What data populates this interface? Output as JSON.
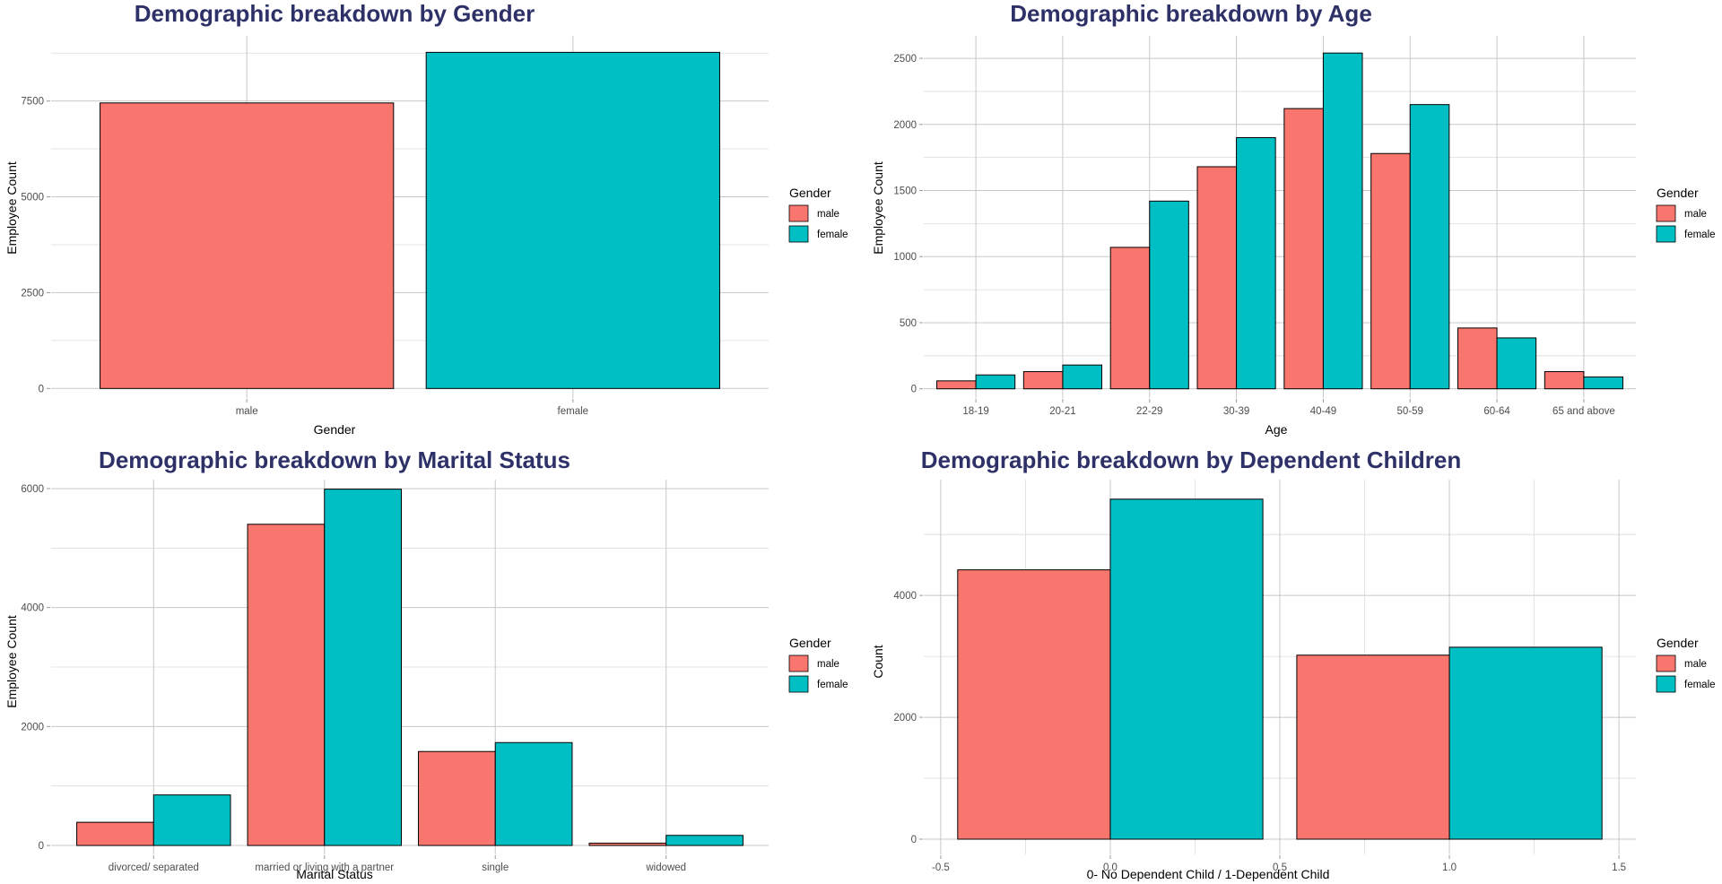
{
  "colors": {
    "male": "#F8766D",
    "female": "#00BFC4",
    "title": "#2E3168",
    "bar_outline": "#000000"
  },
  "legend": {
    "title": "Gender",
    "items": [
      "male",
      "female"
    ]
  },
  "chart_data": [
    {
      "type": "bar",
      "title": "Demographic breakdown by Gender",
      "xlabel": "Gender",
      "ylabel": "Employee Count",
      "categories": [
        "male",
        "female"
      ],
      "values": [
        7450,
        8770
      ],
      "ylim": [
        -250,
        9200
      ],
      "yticks": [
        0,
        2500,
        5000,
        7500
      ],
      "grid": true,
      "legend_position": "right"
    },
    {
      "type": "bar",
      "title": "Demographic breakdown by Age",
      "xlabel": "Age",
      "ylabel": "Employee Count",
      "categories": [
        "18-19",
        "20-21",
        "22-29",
        "30-39",
        "40-49",
        "50-59",
        "60-64",
        "65 and above"
      ],
      "series": [
        {
          "name": "male",
          "values": [
            60,
            130,
            1070,
            1680,
            2120,
            1780,
            460,
            130
          ]
        },
        {
          "name": "female",
          "values": [
            105,
            180,
            1420,
            1900,
            2540,
            2150,
            385,
            90
          ]
        }
      ],
      "ylim": [
        -70,
        2670
      ],
      "yticks": [
        0,
        500,
        1000,
        1500,
        2000,
        2500
      ],
      "grid": true,
      "legend_position": "right"
    },
    {
      "type": "bar",
      "title": "Demographic breakdown by Marital Status",
      "xlabel": "Marital Status",
      "ylabel": "Employee Count",
      "categories": [
        "divorced/ separated",
        "married or living with a partner",
        "single",
        "widowed"
      ],
      "series": [
        {
          "name": "male",
          "values": [
            390,
            5400,
            1580,
            40
          ]
        },
        {
          "name": "female",
          "values": [
            850,
            5990,
            1730,
            170
          ]
        }
      ],
      "ylim": [
        -150,
        6150
      ],
      "yticks": [
        0,
        2000,
        4000,
        6000
      ],
      "grid": true,
      "legend_position": "right"
    },
    {
      "type": "bar",
      "title": "Demographic breakdown by Dependent Children",
      "xlabel": "0- No Dependent Child / 1-Dependent Child",
      "ylabel": "Count",
      "x": [
        0,
        1
      ],
      "series": [
        {
          "name": "male",
          "values": [
            4420,
            3020
          ]
        },
        {
          "name": "female",
          "values": [
            5580,
            3150
          ]
        }
      ],
      "xlim": [
        -0.55,
        1.55
      ],
      "xticks": [
        -0.5,
        0.0,
        0.5,
        1.0,
        1.5
      ],
      "xtick_labels": [
        "-0.5",
        "0.0",
        "0.5",
        "1.0",
        "1.5"
      ],
      "ylim": [
        -250,
        5900
      ],
      "yticks": [
        0,
        2000,
        4000
      ],
      "grid": true,
      "legend_position": "right"
    }
  ]
}
